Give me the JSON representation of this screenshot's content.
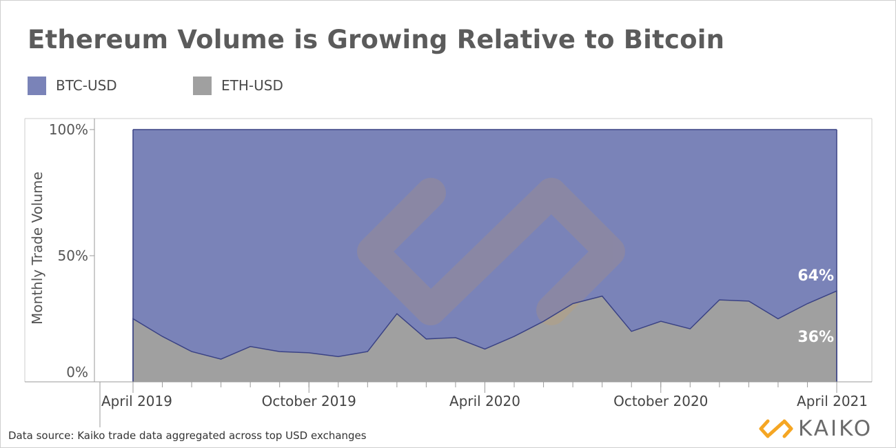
{
  "colors": {
    "btc": "#7a83b8",
    "eth": "#a0a0a0",
    "line": "#3a4284",
    "axis": "#999999",
    "text": "#555555",
    "brand_orange": "#f5a623"
  },
  "footer": {
    "data_source": "Data source: Kaiko trade data aggregated across top USD exchanges",
    "brand": "KAIKO"
  },
  "chart_data": {
    "type": "area",
    "stacked": true,
    "percent": true,
    "title": "Ethereum Volume is Growing Relative to Bitcoin",
    "xlabel": "",
    "ylabel": "Monthly Trade Volume",
    "ylim": [
      0,
      100
    ],
    "yticks": [
      "0%",
      "50%",
      "100%"
    ],
    "xticks": [
      "April 2019",
      "October 2019",
      "April 2020",
      "October 2020",
      "April 2021"
    ],
    "legend_position": "top-left",
    "grid": false,
    "x": [
      "2019-04",
      "2019-05",
      "2019-06",
      "2019-07",
      "2019-08",
      "2019-09",
      "2019-10",
      "2019-11",
      "2019-12",
      "2020-01",
      "2020-02",
      "2020-03",
      "2020-04",
      "2020-05",
      "2020-06",
      "2020-07",
      "2020-08",
      "2020-09",
      "2020-10",
      "2020-11",
      "2020-12",
      "2021-01",
      "2021-02",
      "2021-03",
      "2021-04"
    ],
    "series": [
      {
        "name": "ETH-USD",
        "values": [
          25,
          18,
          12,
          9,
          14,
          12,
          11.5,
          10,
          12,
          27,
          17,
          17.5,
          13,
          18,
          24,
          31,
          34,
          20,
          24,
          21,
          32.5,
          32,
          25,
          31,
          36
        ]
      },
      {
        "name": "BTC-USD",
        "values": [
          75,
          82,
          88,
          91,
          86,
          88,
          88.5,
          90,
          88,
          73,
          83,
          82.5,
          87,
          82,
          76,
          69,
          66,
          80,
          76,
          79,
          67.5,
          68,
          75,
          69,
          64
        ]
      }
    ],
    "annotations": [
      {
        "text": "64%",
        "series": "BTC-USD",
        "x": "2021-04"
      },
      {
        "text": "36%",
        "series": "ETH-USD",
        "x": "2021-04"
      }
    ]
  }
}
